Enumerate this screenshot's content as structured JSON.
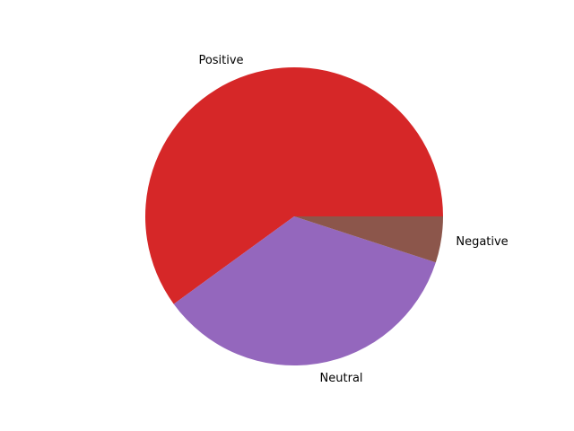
{
  "chart_data": {
    "type": "pie",
    "title": "",
    "start_angle_deg": 0,
    "direction": "counterclockwise",
    "slices": [
      {
        "label": "Positive",
        "value": 60.0,
        "color": "#d62728"
      },
      {
        "label": "Neutral",
        "value": 35.0,
        "color": "#9467bd"
      },
      {
        "label": "Negative",
        "value": 5.0,
        "color": "#8c564b"
      }
    ]
  }
}
